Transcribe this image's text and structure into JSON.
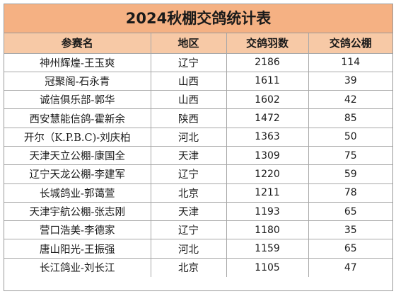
{
  "title": "2024秋棚交鸽统计表",
  "columns": [
    "参赛名",
    "地区",
    "交鸽羽数",
    "交鸽公棚"
  ],
  "rows": [
    {
      "name": "神州辉煌-王玉爽",
      "region": "辽宁",
      "pigeons": "2186",
      "lofts": "114"
    },
    {
      "name": "冠聚阁-石永青",
      "region": "山西",
      "pigeons": "1611",
      "lofts": "39"
    },
    {
      "name": "诚信俱乐部-郭华",
      "region": "山西",
      "pigeons": "1602",
      "lofts": "42"
    },
    {
      "name": "西安慧能信鸽-霍新余",
      "region": "陕西",
      "pigeons": "1472",
      "lofts": "85"
    },
    {
      "name": "开尔（K.P.B.C)-刘庆柏",
      "region": "河北",
      "pigeons": "1363",
      "lofts": "50"
    },
    {
      "name": "天津天立公棚-康国全",
      "region": "天津",
      "pigeons": "1309",
      "lofts": "75"
    },
    {
      "name": "辽宁天龙公棚-李建军",
      "region": "辽宁",
      "pigeons": "1220",
      "lofts": "59"
    },
    {
      "name": "长城鸽业-郭蔼萱",
      "region": "北京",
      "pigeons": "1211",
      "lofts": "78"
    },
    {
      "name": "天津宇航公棚-张志刚",
      "region": "天津",
      "pigeons": "1193",
      "lofts": "65"
    },
    {
      "name": "营口浩美-李德家",
      "region": "辽宁",
      "pigeons": "1180",
      "lofts": "35"
    },
    {
      "name": "唐山阳光-王振强",
      "region": "河北",
      "pigeons": "1159",
      "lofts": "65"
    },
    {
      "name": "长江鸽业-刘长江",
      "region": "北京",
      "pigeons": "1105",
      "lofts": "47"
    }
  ]
}
